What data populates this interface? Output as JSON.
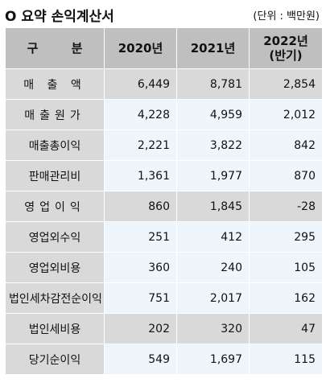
{
  "title": "O 요약 손익계산서",
  "unit": "(단위 : 백만원)",
  "columns": [
    "구 분",
    "2020년",
    "2021년",
    "2022년\n(반기)"
  ],
  "rows": [
    {
      "label": "매 출 액",
      "v2020": "6,449",
      "v2021": "8,781",
      "v2022": "2,854"
    },
    {
      "label": "매출원가",
      "v2020": "4,228",
      "v2021": "4,959",
      "v2022": "2,012"
    },
    {
      "label": "매출총이익",
      "v2020": "2,221",
      "v2021": "3,822",
      "v2022": "842"
    },
    {
      "label": "판매관리비",
      "v2020": "1,361",
      "v2021": "1,977",
      "v2022": "870"
    },
    {
      "label": "영업이익",
      "v2020": "860",
      "v2021": "1,845",
      "v2022": "-28"
    },
    {
      "label": "영업외수익",
      "v2020": "251",
      "v2021": "412",
      "v2022": "295"
    },
    {
      "label": "영업외비용",
      "v2020": "360",
      "v2021": "240",
      "v2022": "105"
    },
    {
      "label": "법인세차감전순이익",
      "v2020": "751",
      "v2021": "2,017",
      "v2022": "162"
    },
    {
      "label": "법인세비용",
      "v2020": "202",
      "v2021": "320",
      "v2022": "47"
    },
    {
      "label": "당기순이익",
      "v2020": "549",
      "v2021": "1,697",
      "v2022": "115"
    }
  ],
  "colors": {
    "header_bg": "#bfbfbf",
    "label_bg": "#d9d9d9",
    "shaded_row_bg": "#d9d9d9",
    "light_row_bg": "#eef6fb"
  }
}
